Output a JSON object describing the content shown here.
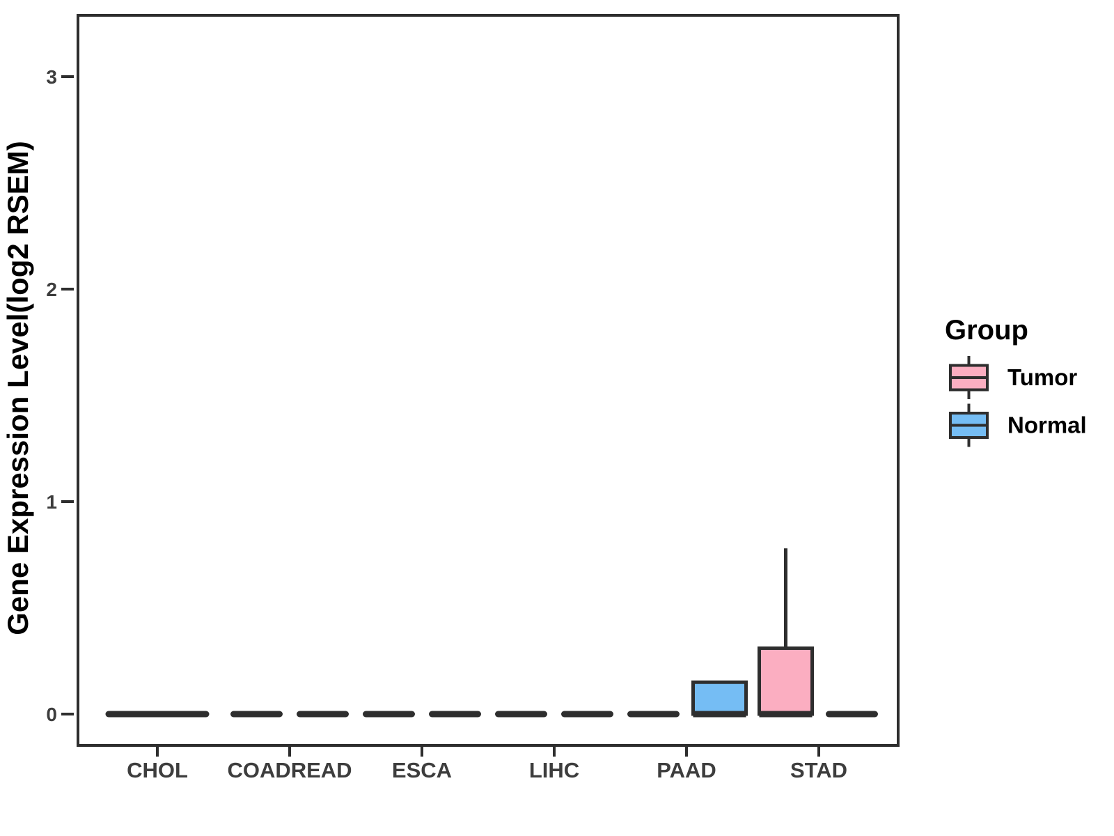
{
  "chart_data": {
    "type": "boxplot",
    "title": "",
    "xlabel": "",
    "ylabel": "Gene Expression Level(log2 RSEM)",
    "categories": [
      "CHOL",
      "COADREAD",
      "ESCA",
      "LIHC",
      "PAAD",
      "STAD"
    ],
    "y_ticks": [
      0,
      1,
      2,
      3
    ],
    "ylim": [
      -0.15,
      3.29
    ],
    "grid": false,
    "background": "#FFFFFF",
    "colors": {
      "tumor_fill": "#FBAEC1",
      "normal_fill": "#75BDF4",
      "box_stroke": "#2E2E2E",
      "axis_text": "#3D3D3D",
      "title_text": "#000000"
    },
    "legend": {
      "title": "Group",
      "position": "right",
      "entries": [
        {
          "label": "Tumor",
          "group": "Tumor",
          "color": "#FBAEC1"
        },
        {
          "label": "Normal",
          "group": "Normal",
          "color": "#75BDF4"
        }
      ]
    },
    "boxes": [
      {
        "category": "CHOL",
        "group": "both",
        "min": 0,
        "q1": 0,
        "median": 0,
        "q3": 0,
        "max": 0
      },
      {
        "category": "COADREAD",
        "group": "Tumor",
        "min": 0,
        "q1": 0,
        "median": 0,
        "q3": 0,
        "max": 0
      },
      {
        "category": "COADREAD",
        "group": "Normal",
        "min": 0,
        "q1": 0,
        "median": 0,
        "q3": 0,
        "max": 0
      },
      {
        "category": "ESCA",
        "group": "Tumor",
        "min": 0,
        "q1": 0,
        "median": 0,
        "q3": 0,
        "max": 0
      },
      {
        "category": "ESCA",
        "group": "Normal",
        "min": 0,
        "q1": 0,
        "median": 0,
        "q3": 0,
        "max": 0
      },
      {
        "category": "LIHC",
        "group": "Tumor",
        "min": 0,
        "q1": 0,
        "median": 0,
        "q3": 0,
        "max": 0
      },
      {
        "category": "LIHC",
        "group": "Normal",
        "min": 0,
        "q1": 0,
        "median": 0,
        "q3": 0,
        "max": 0
      },
      {
        "category": "PAAD",
        "group": "Tumor",
        "min": 0,
        "q1": 0,
        "median": 0,
        "q3": 0,
        "max": 0
      },
      {
        "category": "PAAD",
        "group": "Normal",
        "min": 0,
        "q1": 0,
        "median": 0,
        "q3": 0.15,
        "max": 0.15
      },
      {
        "category": "STAD",
        "group": "Tumor",
        "min": 0,
        "q1": 0,
        "median": 0,
        "q3": 0.31,
        "max": 0.78
      },
      {
        "category": "STAD",
        "group": "Normal",
        "min": 0,
        "q1": 0,
        "median": 0,
        "q3": 0,
        "max": 0
      }
    ]
  }
}
